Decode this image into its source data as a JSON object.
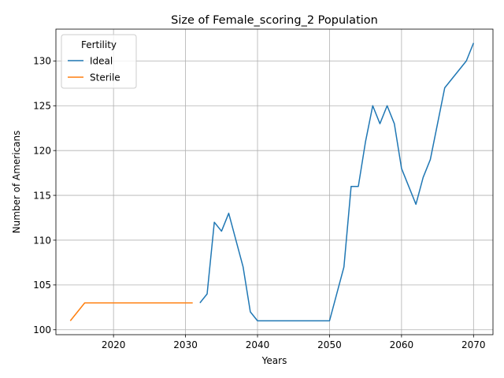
{
  "chart_data": {
    "type": "line",
    "title": "Size of Female_scoring_2 Population",
    "xlabel": "Years",
    "ylabel": "Number of Americans",
    "xlim": [
      2012,
      2072.7
    ],
    "ylim": [
      99.45,
      133.55
    ],
    "xticks": [
      2020,
      2030,
      2040,
      2050,
      2060,
      2070
    ],
    "yticks": [
      100,
      105,
      110,
      115,
      120,
      125,
      130
    ],
    "grid": true,
    "legend": {
      "title": "Fertility",
      "placement": "top-left"
    },
    "series": [
      {
        "name": "Ideal",
        "color": "#1f77b4",
        "points": [
          [
            2032,
            103
          ],
          [
            2033,
            104
          ],
          [
            2034,
            112
          ],
          [
            2035,
            111
          ],
          [
            2036,
            113
          ],
          [
            2037,
            110
          ],
          [
            2038,
            107
          ],
          [
            2039,
            102
          ],
          [
            2040,
            101
          ],
          [
            2041,
            101
          ],
          [
            2042,
            101
          ],
          [
            2043,
            101
          ],
          [
            2044,
            101
          ],
          [
            2045,
            101
          ],
          [
            2046,
            101
          ],
          [
            2047,
            101
          ],
          [
            2048,
            101
          ],
          [
            2049,
            101
          ],
          [
            2050,
            101
          ],
          [
            2051,
            104
          ],
          [
            2052,
            107
          ],
          [
            2053,
            116
          ],
          [
            2054,
            116
          ],
          [
            2055,
            121
          ],
          [
            2056,
            125
          ],
          [
            2057,
            123
          ],
          [
            2058,
            125
          ],
          [
            2059,
            123
          ],
          [
            2060,
            118
          ],
          [
            2061,
            116
          ],
          [
            2062,
            114
          ],
          [
            2063,
            117
          ],
          [
            2064,
            119
          ],
          [
            2065,
            123
          ],
          [
            2066,
            127
          ],
          [
            2067,
            128
          ],
          [
            2068,
            129
          ],
          [
            2069,
            130
          ],
          [
            2070,
            132
          ]
        ]
      },
      {
        "name": "Sterile",
        "color": "#ff7f0e",
        "points": [
          [
            2014,
            101
          ],
          [
            2015,
            102
          ],
          [
            2016,
            103
          ],
          [
            2017,
            103
          ],
          [
            2018,
            103
          ],
          [
            2019,
            103
          ],
          [
            2020,
            103
          ],
          [
            2021,
            103
          ],
          [
            2022,
            103
          ],
          [
            2023,
            103
          ],
          [
            2024,
            103
          ],
          [
            2025,
            103
          ],
          [
            2026,
            103
          ],
          [
            2027,
            103
          ],
          [
            2028,
            103
          ],
          [
            2029,
            103
          ],
          [
            2030,
            103
          ],
          [
            2031,
            103
          ]
        ]
      }
    ]
  }
}
